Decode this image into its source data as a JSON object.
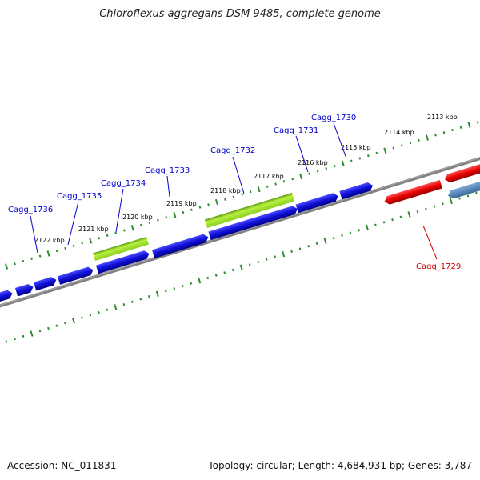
{
  "title": "Chloroflexus aggregans DSM 9485, complete genome",
  "footer": {
    "accession": "Accession: NC_011831",
    "summary": "Topology: circular; Length: 4,684,931 bp; Genes: 3,787"
  },
  "colors": {
    "forward_gene": "#1010d8",
    "reverse_gene": "#e80000",
    "highlight_gene": "#9cdc28",
    "other_gene": "#4a7fb5",
    "backbone": "#808080",
    "ticks": "#2e8b2e",
    "forward_label": "#0000cc",
    "reverse_label": "#cc0000"
  },
  "scale_labels": [
    "2122 kbp",
    "2121 kbp",
    "2120 kbp",
    "2119 kbp",
    "2118 kbp",
    "2117 kbp",
    "2116 kbp",
    "2115 kbp",
    "2114 kbp",
    "2113 kbp"
  ],
  "gene_labels": [
    {
      "name": "Cagg_1736",
      "strand": "forward"
    },
    {
      "name": "Cagg_1735",
      "strand": "forward"
    },
    {
      "name": "Cagg_1734",
      "strand": "forward"
    },
    {
      "name": "Cagg_1733",
      "strand": "forward"
    },
    {
      "name": "Cagg_1732",
      "strand": "forward"
    },
    {
      "name": "Cagg_1731",
      "strand": "forward"
    },
    {
      "name": "Cagg_1730",
      "strand": "forward"
    },
    {
      "name": "Cagg_1729",
      "strand": "reverse"
    }
  ]
}
